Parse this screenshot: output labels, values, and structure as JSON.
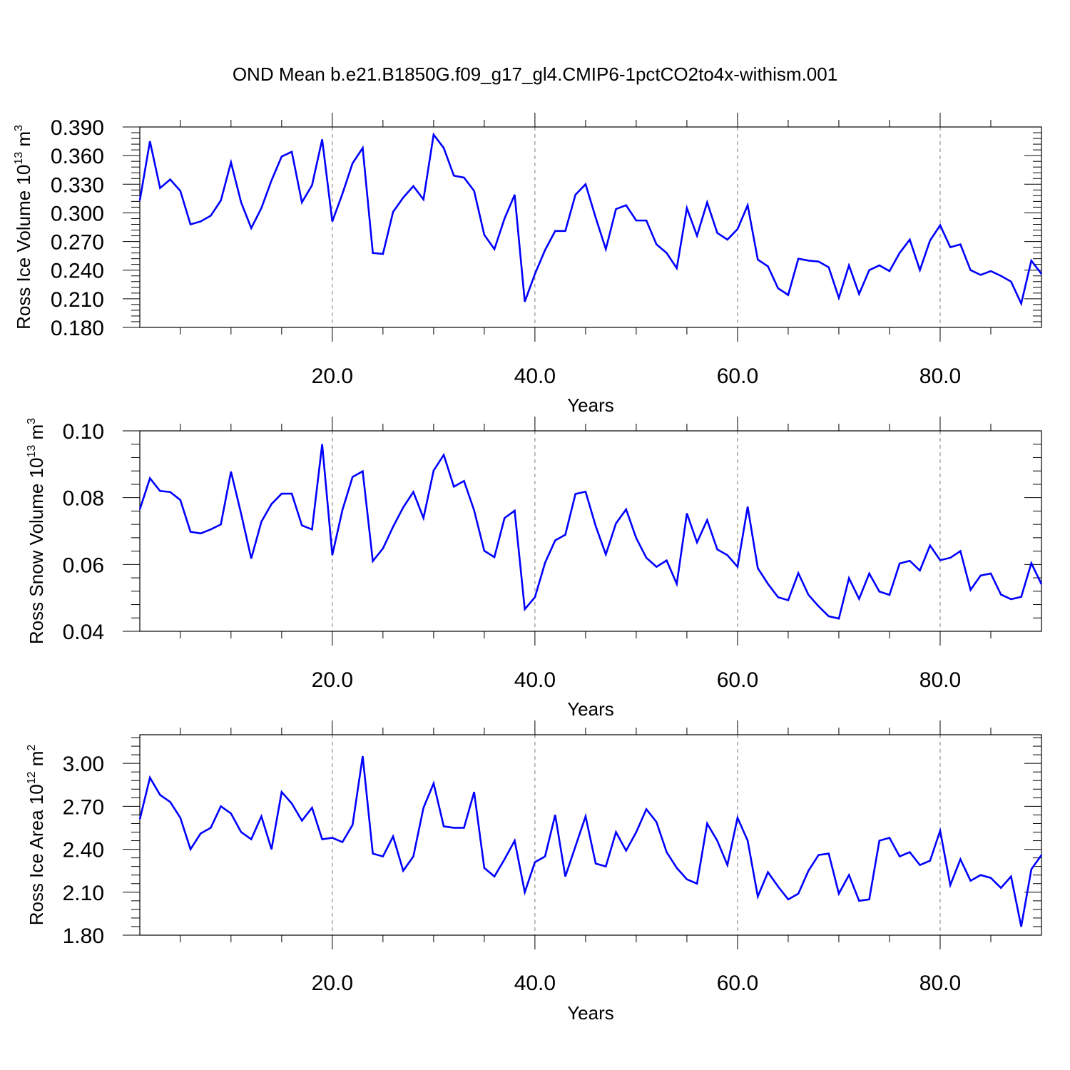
{
  "title": "OND Mean b.e21.B1850G.f09_g17_gl4.CMIP6-1pctCO2to4x-withism.001",
  "chart_data": [
    {
      "type": "line",
      "xlabel": "Years",
      "ylabel": {
        "main": "Ross Ice Volume 10",
        "exp": "13",
        "unit": " m",
        "unit_exp": "3"
      },
      "xlim": [
        1,
        90
      ],
      "ylim": [
        0.18,
        0.39
      ],
      "xticks": [
        20,
        40,
        60,
        80
      ],
      "xtick_labels": [
        "20.0",
        "40.0",
        "60.0",
        "80.0"
      ],
      "yticks": [
        0.18,
        0.21,
        0.24,
        0.27,
        0.3,
        0.33,
        0.36,
        0.39
      ],
      "ytick_labels": [
        "0.180",
        "0.210",
        "0.240",
        "0.270",
        "0.300",
        "0.330",
        "0.360",
        "0.390"
      ],
      "grid": "dashed vertical at major x ticks",
      "color": "#0000ff",
      "x_start": 1,
      "values": [
        0.313,
        0.375,
        0.326,
        0.335,
        0.323,
        0.288,
        0.291,
        0.297,
        0.313,
        0.353,
        0.311,
        0.284,
        0.305,
        0.334,
        0.359,
        0.364,
        0.311,
        0.329,
        0.377,
        0.291,
        0.32,
        0.352,
        0.368,
        0.258,
        0.257,
        0.301,
        0.316,
        0.328,
        0.314,
        0.382,
        0.368,
        0.339,
        0.337,
        0.323,
        0.277,
        0.262,
        0.294,
        0.319,
        0.207,
        0.236,
        0.261,
        0.281,
        0.281,
        0.319,
        0.33,
        0.295,
        0.262,
        0.304,
        0.308,
        0.292,
        0.292,
        0.267,
        0.258,
        0.242,
        0.305,
        0.276,
        0.311,
        0.279,
        0.272,
        0.283,
        0.308,
        0.251,
        0.244,
        0.221,
        0.214,
        0.252,
        0.25,
        0.249,
        0.243,
        0.211,
        0.245,
        0.215,
        0.24,
        0.245,
        0.239,
        0.258,
        0.272,
        0.24,
        0.271,
        0.287,
        0.264,
        0.267,
        0.24,
        0.235,
        0.239,
        0.234,
        0.228,
        0.205,
        0.25,
        0.236
      ]
    },
    {
      "type": "line",
      "xlabel": "Years",
      "ylabel": {
        "main": "Ross Snow Volume 10",
        "exp": "13",
        "unit": " m",
        "unit_exp": "3"
      },
      "xlim": [
        1,
        90
      ],
      "ylim": [
        0.04,
        0.1
      ],
      "xticks": [
        20,
        40,
        60,
        80
      ],
      "xtick_labels": [
        "20.0",
        "40.0",
        "60.0",
        "80.0"
      ],
      "yticks": [
        0.04,
        0.06,
        0.08,
        0.1
      ],
      "ytick_labels": [
        "0.04",
        "0.06",
        "0.08",
        "0.10"
      ],
      "grid": "dashed vertical at major x ticks",
      "color": "#0000ff",
      "x_start": 1,
      "values": [
        0.0765,
        0.0858,
        0.082,
        0.0817,
        0.0793,
        0.0698,
        0.0693,
        0.0705,
        0.072,
        0.0878,
        0.0752,
        0.0618,
        0.0728,
        0.0781,
        0.0812,
        0.0812,
        0.0717,
        0.0705,
        0.096,
        0.0628,
        0.0763,
        0.0862,
        0.0879,
        0.061,
        0.0648,
        0.0713,
        0.0771,
        0.0817,
        0.0739,
        0.0881,
        0.0928,
        0.0833,
        0.085,
        0.0762,
        0.0641,
        0.0622,
        0.0739,
        0.0761,
        0.0466,
        0.0502,
        0.0605,
        0.0672,
        0.0689,
        0.0811,
        0.0818,
        0.0715,
        0.063,
        0.0723,
        0.0765,
        0.0679,
        0.062,
        0.0593,
        0.0612,
        0.0542,
        0.0753,
        0.0666,
        0.0733,
        0.0645,
        0.0628,
        0.0593,
        0.0773,
        0.0589,
        0.0542,
        0.0502,
        0.0493,
        0.0574,
        0.0509,
        0.0475,
        0.0445,
        0.0438,
        0.0559,
        0.0497,
        0.0573,
        0.0519,
        0.0509,
        0.0603,
        0.0611,
        0.0582,
        0.0657,
        0.0613,
        0.062,
        0.064,
        0.0524,
        0.0567,
        0.0573,
        0.051,
        0.0496,
        0.0503,
        0.0604,
        0.0541
      ]
    },
    {
      "type": "line",
      "xlabel": "Years",
      "ylabel": {
        "main": "Ross Ice Area 10",
        "exp": "12",
        "unit": " m",
        "unit_exp": "2"
      },
      "xlim": [
        1,
        90
      ],
      "ylim": [
        1.8,
        3.2
      ],
      "xticks": [
        20,
        40,
        60,
        80
      ],
      "xtick_labels": [
        "20.0",
        "40.0",
        "60.0",
        "80.0"
      ],
      "yticks": [
        1.8,
        2.1,
        2.4,
        2.7,
        3.0
      ],
      "ytick_labels": [
        "1.80",
        "2.10",
        "2.40",
        "2.70",
        "3.00"
      ],
      "grid": "dashed vertical at major x ticks",
      "color": "#0000ff",
      "x_start": 1,
      "values": [
        2.61,
        2.9,
        2.78,
        2.73,
        2.62,
        2.4,
        2.51,
        2.55,
        2.7,
        2.65,
        2.52,
        2.47,
        2.63,
        2.4,
        2.8,
        2.72,
        2.6,
        2.69,
        2.47,
        2.48,
        2.45,
        2.57,
        3.05,
        2.37,
        2.35,
        2.49,
        2.25,
        2.35,
        2.69,
        2.86,
        2.56,
        2.55,
        2.55,
        2.8,
        2.27,
        2.21,
        2.33,
        2.46,
        2.1,
        2.31,
        2.35,
        2.64,
        2.21,
        2.42,
        2.63,
        2.3,
        2.28,
        2.52,
        2.39,
        2.52,
        2.68,
        2.59,
        2.38,
        2.27,
        2.19,
        2.16,
        2.58,
        2.46,
        2.29,
        2.62,
        2.46,
        2.07,
        2.24,
        2.14,
        2.05,
        2.09,
        2.25,
        2.36,
        2.37,
        2.09,
        2.22,
        2.04,
        2.05,
        2.46,
        2.48,
        2.35,
        2.38,
        2.29,
        2.32,
        2.53,
        2.15,
        2.33,
        2.18,
        2.22,
        2.2,
        2.13,
        2.21,
        1.86,
        2.26,
        2.36
      ]
    }
  ]
}
